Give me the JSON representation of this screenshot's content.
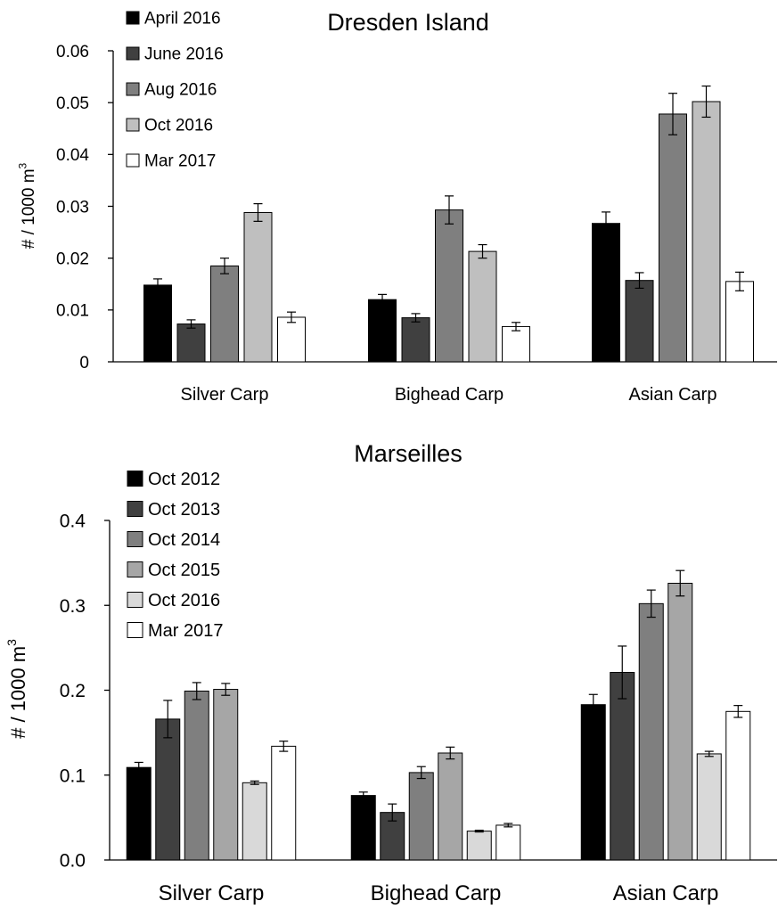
{
  "chart_data": [
    {
      "type": "bar",
      "title": "Dresden Island",
      "ylabel": "# / 1000 m",
      "ylabel_sup": "3",
      "ylim": [
        0,
        0.06
      ],
      "yticks": [
        {
          "value": 0,
          "label": "0"
        },
        {
          "value": 0.01,
          "label": "0.01"
        },
        {
          "value": 0.02,
          "label": "0.02"
        },
        {
          "value": 0.03,
          "label": "0.03"
        },
        {
          "value": 0.04,
          "label": "0.04"
        },
        {
          "value": 0.05,
          "label": "0.05"
        },
        {
          "value": 0.06,
          "label": "0.06"
        }
      ],
      "categories": [
        "Silver Carp",
        "Bighead Carp",
        "Asian Carp"
      ],
      "legend_position": "top-left",
      "series": [
        {
          "name": "April 2016",
          "color": "#000000",
          "values": [
            0.0148,
            0.012,
            0.0267
          ],
          "errors": [
            0.0012,
            0.001,
            0.0022
          ]
        },
        {
          "name": "June 2016",
          "color": "#404040",
          "values": [
            0.0073,
            0.0085,
            0.0157
          ],
          "errors": [
            0.0008,
            0.0008,
            0.0015
          ]
        },
        {
          "name": "Aug 2016",
          "color": "#7f7f7f",
          "values": [
            0.0185,
            0.0293,
            0.0478
          ],
          "errors": [
            0.0015,
            0.0027,
            0.004
          ]
        },
        {
          "name": "Oct 2016",
          "color": "#bfbfbf",
          "values": [
            0.0288,
            0.0213,
            0.0502
          ],
          "errors": [
            0.0017,
            0.0013,
            0.003
          ]
        },
        {
          "name": "Mar 2017",
          "color": "#ffffff",
          "values": [
            0.0086,
            0.0068,
            0.0155
          ],
          "errors": [
            0.001,
            0.0008,
            0.0018
          ]
        }
      ]
    },
    {
      "type": "bar",
      "title": "Marseilles",
      "ylabel": "# / 1000 m",
      "ylabel_sup": "3",
      "ylim": [
        0,
        0.4
      ],
      "yticks": [
        {
          "value": 0,
          "label": "0.0"
        },
        {
          "value": 0.1,
          "label": "0.1"
        },
        {
          "value": 0.2,
          "label": "0.2"
        },
        {
          "value": 0.3,
          "label": "0.3"
        },
        {
          "value": 0.4,
          "label": "0.4"
        }
      ],
      "categories": [
        "Silver Carp",
        "Bighead Carp",
        "Asian Carp"
      ],
      "legend_position": "top-left",
      "series": [
        {
          "name": "Oct 2012",
          "color": "#000000",
          "values": [
            0.109,
            0.076,
            0.183
          ],
          "errors": [
            0.006,
            0.004,
            0.012
          ]
        },
        {
          "name": "Oct 2013",
          "color": "#404040",
          "values": [
            0.166,
            0.056,
            0.221
          ],
          "errors": [
            0.022,
            0.01,
            0.031
          ]
        },
        {
          "name": "Oct 2014",
          "color": "#7f7f7f",
          "values": [
            0.199,
            0.103,
            0.302
          ],
          "errors": [
            0.01,
            0.007,
            0.016
          ]
        },
        {
          "name": "Oct 2015",
          "color": "#a6a6a6",
          "values": [
            0.201,
            0.126,
            0.326
          ],
          "errors": [
            0.007,
            0.007,
            0.015
          ]
        },
        {
          "name": "Oct 2016",
          "color": "#d9d9d9",
          "values": [
            0.091,
            0.034,
            0.125
          ],
          "errors": [
            0.002,
            0.001,
            0.003
          ]
        },
        {
          "name": "Mar 2017",
          "color": "#ffffff",
          "values": [
            0.134,
            0.041,
            0.175
          ],
          "errors": [
            0.006,
            0.002,
            0.007
          ]
        }
      ]
    }
  ]
}
